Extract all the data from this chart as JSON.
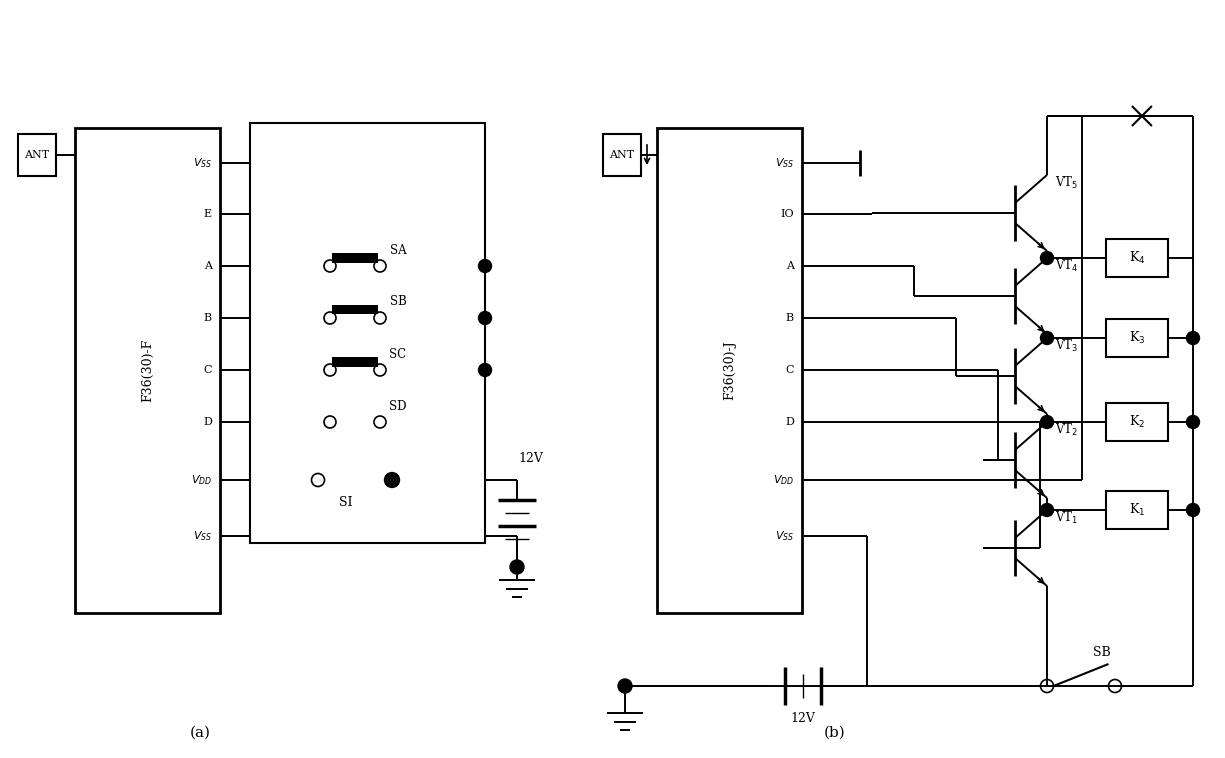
{
  "bg": "#ffffff",
  "lc": "#000000",
  "lw": 1.4,
  "fig_w": 12.25,
  "fig_h": 7.58,
  "chip_a_label": "F36(30)-F",
  "chip_b_label": "F36(30)-J",
  "pin_labels_a": [
    "$V_{SS}$",
    "E",
    "A",
    "B",
    "C",
    "D",
    "$V_{DD}$",
    "$V_{SS}$"
  ],
  "pin_labels_b": [
    "$V_{SS}$",
    "IO",
    "A",
    "B",
    "C",
    "D",
    "$V_{DD}$",
    "$V_{SS}$"
  ],
  "sw_labels_a": [
    "SA",
    "SB",
    "SC",
    "SD"
  ],
  "vt_labels": [
    "VT$_1$",
    "VT$_2$",
    "VT$_3$",
    "VT$_4$",
    "VT$_5$"
  ],
  "k_labels": [
    "K$_1$",
    "K$_2$",
    "K$_3$",
    "K$_4$"
  ],
  "label_a": "(a)",
  "label_b": "(b)"
}
